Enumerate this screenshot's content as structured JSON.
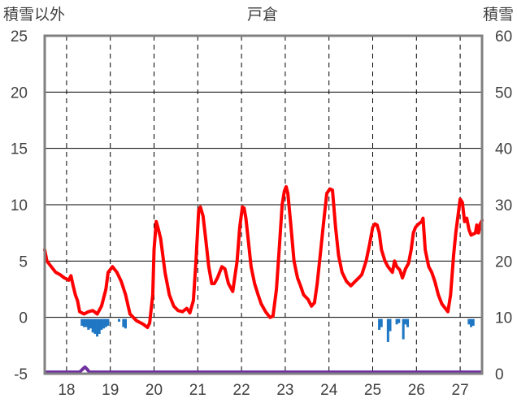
{
  "chart_data": {
    "type": "line",
    "title": "戸倉",
    "y_left_label": "積雪以外",
    "y_right_label": "積雪",
    "y_left_range": [
      -5,
      25
    ],
    "y_left_ticks": [
      "25",
      "20",
      "15",
      "10",
      "5",
      "0",
      "-5"
    ],
    "y_right_range": [
      0,
      60
    ],
    "y_right_ticks": [
      "60",
      "50",
      "40",
      "30",
      "20",
      "10",
      "0"
    ],
    "x_ticks": [
      "18",
      "19",
      "20",
      "21",
      "22",
      "23",
      "24",
      "25",
      "26",
      "27"
    ],
    "x_tick_positions": [
      18,
      19,
      20,
      21,
      22,
      23,
      24,
      25,
      26,
      27
    ],
    "x_range": [
      17.5,
      27.5
    ],
    "grid": {
      "horizontal": "solid",
      "vertical": "dashed"
    },
    "colors": {
      "temperature": "#ff0000",
      "precipitation": "#1f77c4",
      "snow": "#7030a0",
      "axis": "#808080"
    },
    "temperature": [
      [
        17.5,
        6.0
      ],
      [
        17.55,
        5.0
      ],
      [
        17.65,
        4.5
      ],
      [
        17.75,
        4.0
      ],
      [
        17.85,
        3.8
      ],
      [
        17.95,
        3.5
      ],
      [
        18.05,
        3.3
      ],
      [
        18.1,
        3.7
      ],
      [
        18.15,
        2.8
      ],
      [
        18.2,
        2.0
      ],
      [
        18.25,
        1.5
      ],
      [
        18.3,
        0.5
      ],
      [
        18.4,
        0.3
      ],
      [
        18.5,
        0.5
      ],
      [
        18.6,
        0.6
      ],
      [
        18.7,
        0.3
      ],
      [
        18.8,
        1.0
      ],
      [
        18.9,
        2.5
      ],
      [
        18.95,
        4.0
      ],
      [
        19.05,
        4.5
      ],
      [
        19.15,
        4.0
      ],
      [
        19.25,
        3.2
      ],
      [
        19.35,
        2.0
      ],
      [
        19.45,
        0.3
      ],
      [
        19.6,
        -0.3
      ],
      [
        19.75,
        -0.6
      ],
      [
        19.85,
        -0.9
      ],
      [
        19.9,
        -0.5
      ],
      [
        19.97,
        2.0
      ],
      [
        20.0,
        6.0
      ],
      [
        20.05,
        8.5
      ],
      [
        20.1,
        7.8
      ],
      [
        20.15,
        7.0
      ],
      [
        20.25,
        4.0
      ],
      [
        20.35,
        2.0
      ],
      [
        20.45,
        1.0
      ],
      [
        20.55,
        0.6
      ],
      [
        20.65,
        0.5
      ],
      [
        20.75,
        0.8
      ],
      [
        20.82,
        0.4
      ],
      [
        20.9,
        1.5
      ],
      [
        20.96,
        5.0
      ],
      [
        21.02,
        9.5
      ],
      [
        21.06,
        9.8
      ],
      [
        21.12,
        9.0
      ],
      [
        21.18,
        7.0
      ],
      [
        21.25,
        4.5
      ],
      [
        21.32,
        3.0
      ],
      [
        21.38,
        3.0
      ],
      [
        21.45,
        3.5
      ],
      [
        21.55,
        4.5
      ],
      [
        21.62,
        4.3
      ],
      [
        21.7,
        3.0
      ],
      [
        21.8,
        2.3
      ],
      [
        21.9,
        5.0
      ],
      [
        21.96,
        8.0
      ],
      [
        22.02,
        9.8
      ],
      [
        22.06,
        9.7
      ],
      [
        22.1,
        8.8
      ],
      [
        22.15,
        7.0
      ],
      [
        22.22,
        4.5
      ],
      [
        22.3,
        3.0
      ],
      [
        22.38,
        2.0
      ],
      [
        22.45,
        1.2
      ],
      [
        22.55,
        0.5
      ],
      [
        22.65,
        0.0
      ],
      [
        22.72,
        0.1
      ],
      [
        22.8,
        2.5
      ],
      [
        22.87,
        6.5
      ],
      [
        22.93,
        10.0
      ],
      [
        22.98,
        11.2
      ],
      [
        23.02,
        11.6
      ],
      [
        23.06,
        11.0
      ],
      [
        23.12,
        8.5
      ],
      [
        23.2,
        5.0
      ],
      [
        23.28,
        3.5
      ],
      [
        23.35,
        2.8
      ],
      [
        23.42,
        2.0
      ],
      [
        23.52,
        1.6
      ],
      [
        23.6,
        1.0
      ],
      [
        23.67,
        1.3
      ],
      [
        23.73,
        3.0
      ],
      [
        23.8,
        5.5
      ],
      [
        23.88,
        8.5
      ],
      [
        23.95,
        11.0
      ],
      [
        24.02,
        11.4
      ],
      [
        24.08,
        11.3
      ],
      [
        24.15,
        8.0
      ],
      [
        24.22,
        5.5
      ],
      [
        24.3,
        4.0
      ],
      [
        24.4,
        3.2
      ],
      [
        24.5,
        2.8
      ],
      [
        24.6,
        3.2
      ],
      [
        24.68,
        3.5
      ],
      [
        24.75,
        3.8
      ],
      [
        24.85,
        5.0
      ],
      [
        24.93,
        6.5
      ],
      [
        25.0,
        8.0
      ],
      [
        25.05,
        8.3
      ],
      [
        25.1,
        8.2
      ],
      [
        25.15,
        7.5
      ],
      [
        25.2,
        6.0
      ],
      [
        25.28,
        5.0
      ],
      [
        25.35,
        4.5
      ],
      [
        25.45,
        4.0
      ],
      [
        25.5,
        5.0
      ],
      [
        25.55,
        4.5
      ],
      [
        25.62,
        4.2
      ],
      [
        25.68,
        3.5
      ],
      [
        25.75,
        4.3
      ],
      [
        25.82,
        4.8
      ],
      [
        25.88,
        6.0
      ],
      [
        25.93,
        7.5
      ],
      [
        25.98,
        8.0
      ],
      [
        26.05,
        8.3
      ],
      [
        26.12,
        8.5
      ],
      [
        26.15,
        8.8
      ],
      [
        26.2,
        6.0
      ],
      [
        26.28,
        4.5
      ],
      [
        26.35,
        4.0
      ],
      [
        26.42,
        3.2
      ],
      [
        26.5,
        2.0
      ],
      [
        26.58,
        1.2
      ],
      [
        26.66,
        0.8
      ],
      [
        26.72,
        0.5
      ],
      [
        26.78,
        2.0
      ],
      [
        26.85,
        5.5
      ],
      [
        26.9,
        7.5
      ],
      [
        26.95,
        9.0
      ],
      [
        27.0,
        10.5
      ],
      [
        27.05,
        10.2
      ],
      [
        27.1,
        8.5
      ],
      [
        27.15,
        8.8
      ],
      [
        27.2,
        7.8
      ],
      [
        27.25,
        7.3
      ],
      [
        27.3,
        7.4
      ],
      [
        27.35,
        7.5
      ],
      [
        27.38,
        8.2
      ],
      [
        27.42,
        7.5
      ],
      [
        27.46,
        8.3
      ],
      [
        27.5,
        8.6
      ]
    ],
    "precipitation": [
      [
        18.35,
        0.5
      ],
      [
        18.4,
        0.6
      ],
      [
        18.45,
        0.6
      ],
      [
        18.5,
        0.8
      ],
      [
        18.55,
        0.7
      ],
      [
        18.6,
        1.0
      ],
      [
        18.65,
        1.1
      ],
      [
        18.7,
        1.3
      ],
      [
        18.75,
        1.1
      ],
      [
        18.8,
        0.8
      ],
      [
        18.85,
        0.7
      ],
      [
        18.9,
        0.6
      ],
      [
        18.95,
        0.5
      ],
      [
        19.2,
        0.2
      ],
      [
        19.3,
        0.6
      ],
      [
        19.35,
        0.7
      ],
      [
        25.15,
        0.8
      ],
      [
        25.2,
        0.6
      ],
      [
        25.35,
        1.7
      ],
      [
        25.4,
        0.9
      ],
      [
        25.55,
        0.4
      ],
      [
        25.6,
        0.3
      ],
      [
        25.7,
        1.5
      ],
      [
        25.75,
        0.4
      ],
      [
        25.8,
        0.6
      ],
      [
        27.2,
        0.4
      ],
      [
        27.25,
        0.6
      ],
      [
        27.3,
        0.5
      ]
    ],
    "snow_depth": [
      [
        17.5,
        0
      ],
      [
        18.3,
        0
      ],
      [
        18.38,
        0.6
      ],
      [
        18.42,
        0.9
      ],
      [
        18.47,
        0.5
      ],
      [
        18.52,
        0
      ],
      [
        27.5,
        0
      ]
    ]
  }
}
